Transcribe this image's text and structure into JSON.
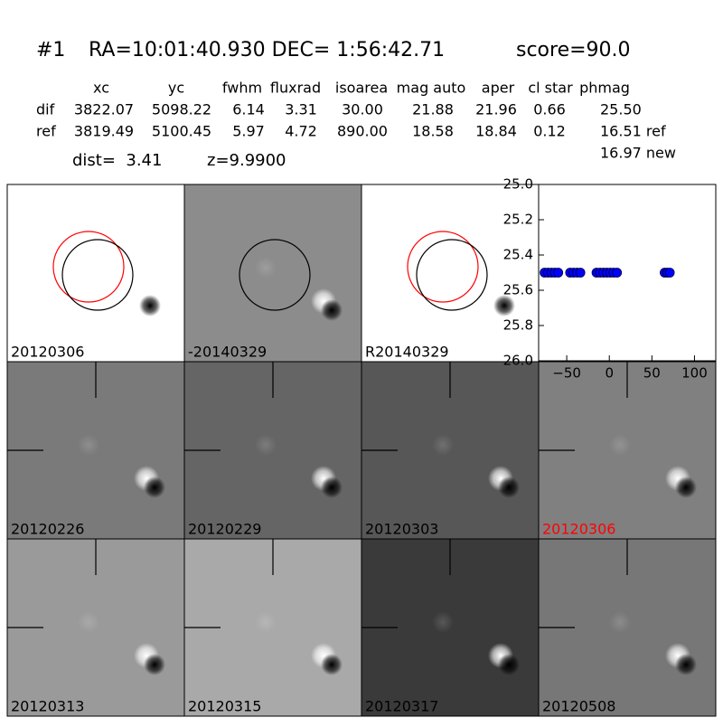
{
  "header": {
    "id": "#1",
    "coords": "RA=10:01:40.930 DEC= 1:56:42.71",
    "score": "score=90.0"
  },
  "table": {
    "columns": [
      "xc",
      "yc",
      "fwhm",
      "fluxrad",
      "isoarea",
      "mag auto",
      "aper",
      "cl star",
      "phmag"
    ],
    "rows": [
      [
        "dif",
        "3822.07",
        "5098.22",
        "6.14",
        "3.31",
        "30.00",
        "21.88",
        "21.96",
        "0.66",
        "25.50"
      ],
      [
        "ref",
        "3819.49",
        "5100.45",
        "5.97",
        "4.72",
        "890.00",
        "18.58",
        "18.84",
        "0.12",
        "16.51 ref"
      ]
    ],
    "extra": "16.97 new"
  },
  "dist": "dist=  3.41",
  "z": "z=9.9900",
  "panels": [
    {
      "label": "20120306",
      "bg": "#ffffff",
      "circles": [
        "#ff0000",
        "#000000"
      ],
      "blob": "dark"
    },
    {
      "label": "-20140329",
      "bg": "#8c8c8c",
      "circles": [
        "#000000"
      ],
      "blob": "dipole"
    },
    {
      "label": "R20140329",
      "bg": "#ffffff",
      "circles": [
        "#ff0000",
        "#000000"
      ],
      "blob": "dark"
    },
    null,
    {
      "label": "20120226",
      "bg": "#7a7a7a",
      "blob": "dipole"
    },
    {
      "label": "20120229",
      "bg": "#656565",
      "blob": "dipole"
    },
    {
      "label": "20120303",
      "bg": "#575757",
      "blob": "dipole"
    },
    {
      "label": "20120306",
      "bg": "#808080",
      "blob": "dipole",
      "label_color": "#ff0000"
    },
    {
      "label": "20120313",
      "bg": "#9a9a9a",
      "blob": "dipole"
    },
    {
      "label": "20120315",
      "bg": "#a9a9a9",
      "blob": "dipole"
    },
    {
      "label": "20120317",
      "bg": "#3a3a3a",
      "blob": "dipole"
    },
    {
      "label": "20120508",
      "bg": "#777777",
      "blob": "dipole"
    }
  ],
  "plot": {
    "type": "scatter",
    "color": "#0000ff",
    "x": [
      -76,
      -72,
      -68,
      -64,
      -60,
      -46,
      -42,
      -38,
      -34,
      -15,
      -11,
      -7,
      -3,
      1,
      5,
      9,
      65,
      68,
      71
    ],
    "values": [
      25.5,
      25.5,
      25.5,
      25.5,
      25.5,
      25.5,
      25.5,
      25.5,
      25.5,
      25.5,
      25.5,
      25.5,
      25.5,
      25.5,
      25.5,
      25.5,
      25.5,
      25.5,
      25.5
    ],
    "xlim": [
      -83,
      125
    ],
    "xticks": [
      {
        "value": -50,
        "label": "−50"
      },
      0,
      50,
      100
    ],
    "ylim": [
      25,
      26
    ],
    "inverted": true,
    "yticks": [
      {
        "value": 25,
        "label": "25.0"
      },
      25.2,
      25.4,
      25.6,
      25.8,
      {
        "value": 26,
        "label": "26.0"
      }
    ]
  }
}
